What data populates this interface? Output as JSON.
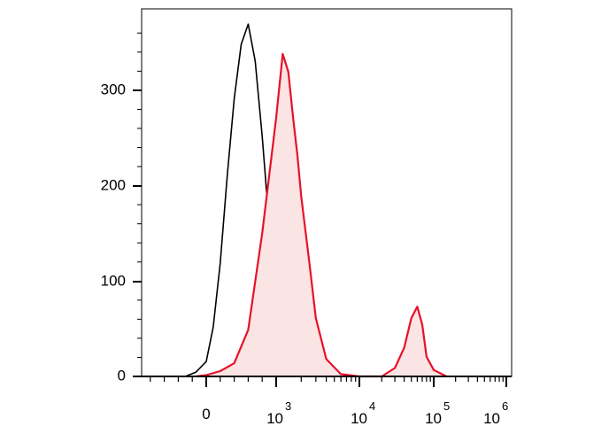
{
  "chart_data": {
    "type": "area",
    "title": "",
    "xlabel": "",
    "ylabel": "",
    "x_scale": "biexponential",
    "ylim": [
      0,
      375
    ],
    "y_ticks": [
      {
        "value": 0,
        "label": "0"
      },
      {
        "value": 100,
        "label": "100"
      },
      {
        "value": 200,
        "label": "200"
      },
      {
        "value": 300,
        "label": "300"
      }
    ],
    "x_ticks": [
      {
        "value": 0,
        "base": "0",
        "exp": ""
      },
      {
        "value": 1000,
        "base": "10",
        "exp": "3"
      },
      {
        "value": 10000,
        "base": "10",
        "exp": "4"
      },
      {
        "value": 100000,
        "base": "10",
        "exp": "5"
      },
      {
        "value": 1000000,
        "base": "10",
        "exp": "6"
      }
    ],
    "colors": {
      "control": "#000000",
      "stained": "#e8102a",
      "stained_fill": "#fbe4e4",
      "axis": "#000000"
    },
    "series": [
      {
        "style": "line",
        "color": "#000000",
        "x": [
          -300,
          -150,
          0,
          100,
          200,
          300,
          400,
          500,
          600,
          700,
          800,
          900,
          1000,
          1100,
          1250,
          1400,
          1600,
          2000
        ],
        "y": [
          0,
          5,
          15,
          50,
          120,
          210,
          290,
          350,
          370,
          330,
          250,
          160,
          90,
          45,
          15,
          3,
          0,
          0
        ]
      },
      {
        "style": "filled",
        "color": "#e8102a",
        "x": [
          -150,
          0,
          200,
          400,
          600,
          800,
          1000,
          1200,
          1400,
          1600,
          1800,
          2000,
          2500,
          3000,
          4000,
          6000,
          10000,
          20000,
          30000,
          40000,
          50000,
          60000,
          70000,
          80000,
          100000,
          150000
        ],
        "y": [
          0,
          2,
          5,
          12,
          50,
          150,
          270,
          340,
          320,
          270,
          230,
          190,
          120,
          60,
          20,
          3,
          0,
          0,
          10,
          30,
          60,
          75,
          55,
          20,
          5,
          0
        ]
      }
    ]
  }
}
